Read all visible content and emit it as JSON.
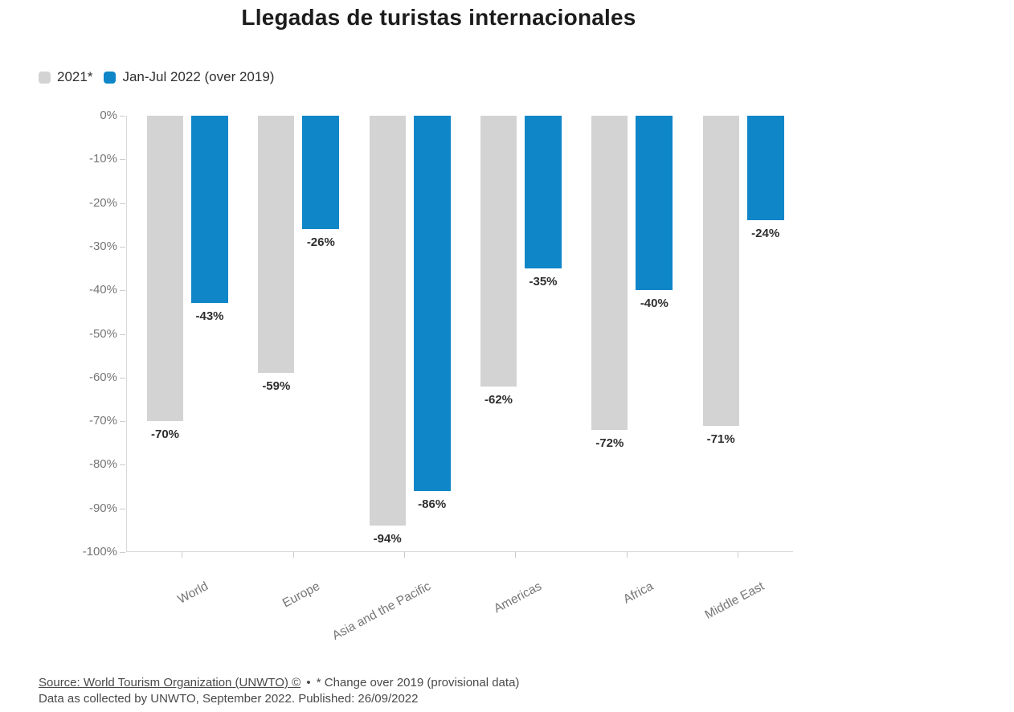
{
  "title": "Llegadas de turistas internacionales",
  "legend": [
    {
      "label": "2021*",
      "color": "#d3d3d3"
    },
    {
      "label": "Jan-Jul 2022 (over 2019)",
      "color": "#0e86c8"
    }
  ],
  "chart_data": {
    "type": "bar",
    "orientation": "vertical-negative",
    "title": "Llegadas de turistas internacionales",
    "categories": [
      "World",
      "Europe",
      "Asia and the Pacific",
      "Americas",
      "Africa",
      "Middle East"
    ],
    "series": [
      {
        "name": "2021*",
        "color": "#d3d3d3",
        "values": [
          -70,
          -59,
          -94,
          -62,
          -72,
          -71
        ],
        "labels": [
          "-70%",
          "-59%",
          "-94%",
          "-62%",
          "-72%",
          "-71%"
        ]
      },
      {
        "name": "Jan-Jul 2022 (over 2019)",
        "color": "#0e86c8",
        "values": [
          -43,
          -26,
          -86,
          -35,
          -40,
          -24
        ],
        "labels": [
          "-43%",
          "-26%",
          "-86%",
          "-35%",
          "-40%",
          "-24%"
        ]
      }
    ],
    "xlabel": "",
    "ylabel": "",
    "ylim": [
      -100,
      0
    ],
    "yticks": [
      "0%",
      "-10%",
      "-20%",
      "-30%",
      "-40%",
      "-50%",
      "-60%",
      "-70%",
      "-80%",
      "-90%",
      "-100%"
    ],
    "grid": false,
    "legend_position": "top-left",
    "value_label_position": "below-bar"
  },
  "footer": {
    "source_link": "Source: World Tourism Organization (UNWTO) ©",
    "separator": "•",
    "note": "* Change over 2019 (provisional data)",
    "line2": "Data as collected by UNWTO, September 2022. Published: 26/09/2022"
  }
}
